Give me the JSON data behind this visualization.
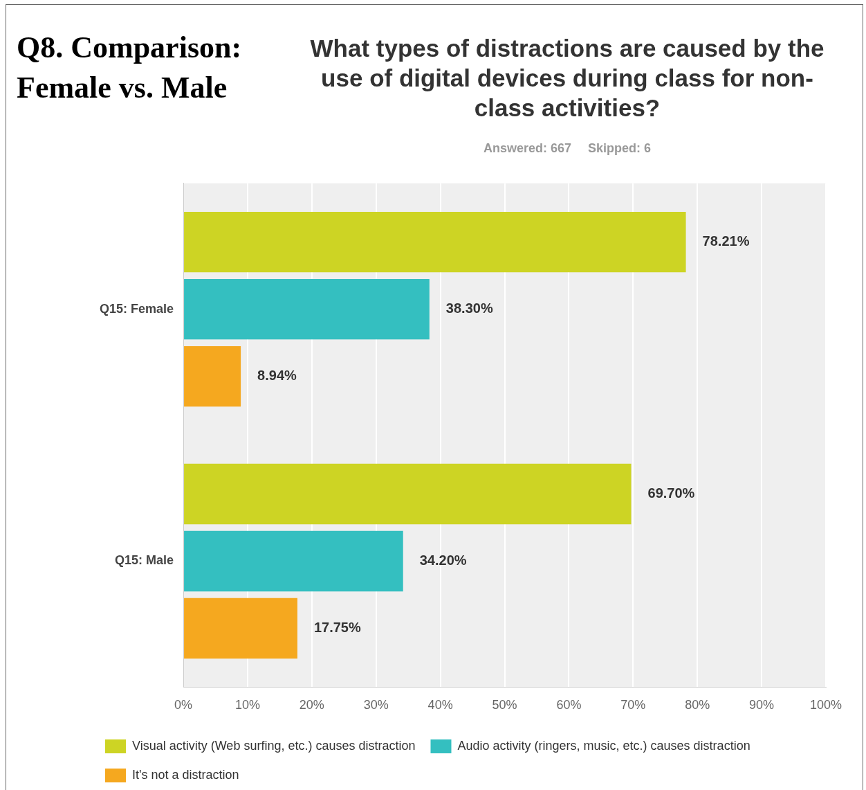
{
  "chart_data": {
    "type": "bar",
    "orientation": "horizontal",
    "title": "Q8. Comparison: Female vs. Male",
    "subtitle": "What types of distractions are caused by the use of digital devices during class for non-class activities?",
    "annotations": [
      "Answered: 667",
      "Skipped: 6"
    ],
    "categories": [
      "Q15: Female",
      "Q15: Male"
    ],
    "series": [
      {
        "name": "Visual activity (Web surfing, etc.) causes distraction",
        "color": "#cdd424",
        "values": [
          78.21,
          69.7
        ],
        "value_labels": [
          "78.21%",
          "69.70%"
        ]
      },
      {
        "name": "Audio activity (ringers, music, etc.) causes distraction",
        "color": "#34bfc0",
        "values": [
          38.3,
          34.2
        ],
        "value_labels": [
          "38.30%",
          "34.20%"
        ]
      },
      {
        "name": "It's not a distraction",
        "color": "#f5a81f",
        "values": [
          8.94,
          17.75
        ],
        "value_labels": [
          "8.94%",
          "17.75%"
        ]
      }
    ],
    "xlim": [
      0,
      100
    ],
    "xticks": [
      {
        "value": 0,
        "label": "0%"
      },
      {
        "value": 10,
        "label": "10%"
      },
      {
        "value": 20,
        "label": "20%"
      },
      {
        "value": 30,
        "label": "30%"
      },
      {
        "value": 40,
        "label": "40%"
      },
      {
        "value": 50,
        "label": "50%"
      },
      {
        "value": 60,
        "label": "60%"
      },
      {
        "value": 70,
        "label": "70%"
      },
      {
        "value": 80,
        "label": "80%"
      },
      {
        "value": 90,
        "label": "90%"
      },
      {
        "value": 100,
        "label": "100%"
      }
    ],
    "grid": "x",
    "legend": "bottom"
  }
}
